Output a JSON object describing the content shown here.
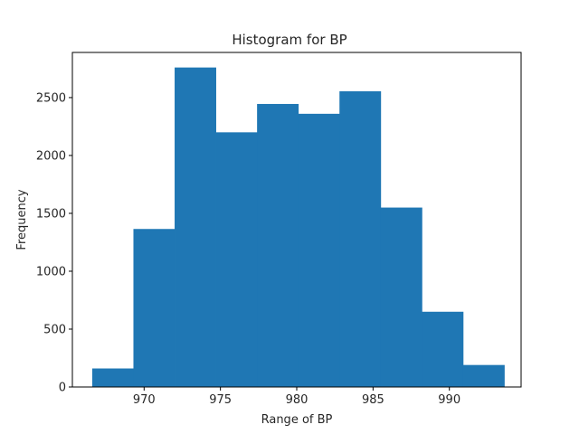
{
  "chart_data": {
    "type": "bar",
    "title": "Histogram for BP",
    "xlabel": "Range of BP",
    "ylabel": "Frequency",
    "bar_color": "#1f77b4",
    "xlim": [
      965.3,
      994.7
    ],
    "ylim": [
      0,
      2890
    ],
    "x_ticks": [
      970,
      975,
      980,
      985,
      990
    ],
    "y_ticks": [
      0,
      500,
      1000,
      1500,
      2000,
      2500
    ],
    "bin_edges": [
      966.6,
      969.3,
      972.0,
      974.7,
      977.4,
      980.1,
      982.8,
      985.5,
      988.2,
      990.9,
      993.6
    ],
    "values": [
      160,
      1365,
      2760,
      2200,
      2445,
      2360,
      2555,
      1550,
      650,
      190
    ]
  }
}
